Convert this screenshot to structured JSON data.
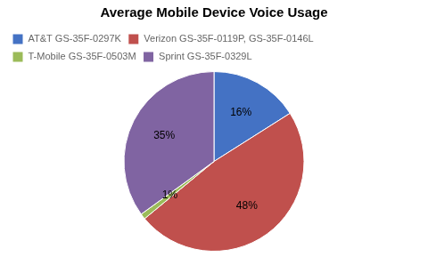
{
  "chart_data": {
    "type": "pie",
    "title": "Average Mobile Device Voice Usage",
    "categories": [
      "AT&T GS-35F-0297K",
      "Verizon GS-35F-0119P, GS-35F-0146L",
      "T-Mobile GS-35F-0503M",
      "Sprint GS-35F-0329L"
    ],
    "values": [
      16,
      48,
      1,
      35
    ],
    "value_labels": [
      "16%",
      "48%",
      "1%",
      "35%"
    ],
    "colors": [
      "#4472C4",
      "#C0504D",
      "#9BBB59",
      "#8064A2"
    ],
    "data_labels": true,
    "legend": "upper left"
  }
}
